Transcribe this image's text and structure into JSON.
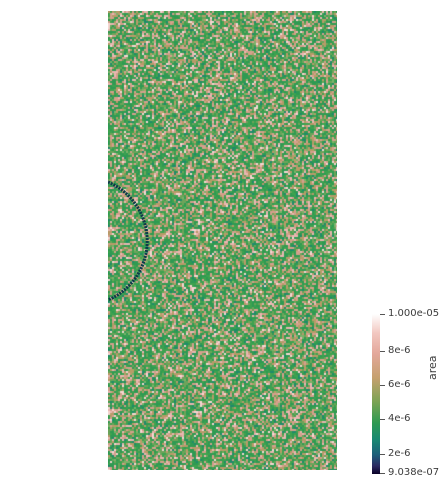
{
  "colorbar": {
    "title": "area",
    "labels": {
      "max": "1.000e-05",
      "t8": "8e-6",
      "t6": "6e-6",
      "t4": "4e-6",
      "t2": "2e-6",
      "min": "9.038e-07"
    }
  },
  "colors": {
    "background": "#ffffff",
    "mesh_palette": [
      "#2f9a52",
      "#3ea24f",
      "#6da35a",
      "#b89b69",
      "#d4a08c",
      "#e9b7b2",
      "#f6d7d3",
      "#1f8a6a",
      "#7bb36a"
    ],
    "circle_outline": "#0e3a4a"
  }
}
